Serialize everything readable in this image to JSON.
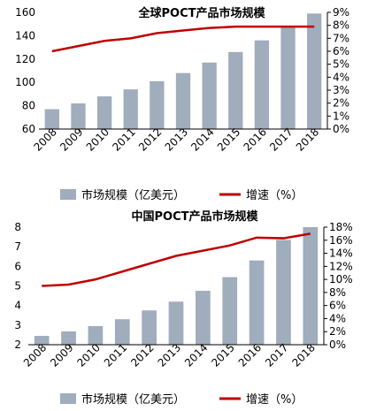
{
  "chart_data": [
    {
      "type": "bar",
      "title": "全球POCT产品市场规模",
      "categories": [
        "2008",
        "2009",
        "2010",
        "2011",
        "2012",
        "2013",
        "2014",
        "2015",
        "2016",
        "2017",
        "2018"
      ],
      "series": [
        {
          "name": "市场规模（亿美元）",
          "type": "bar",
          "axis": "left",
          "values": [
            77,
            82,
            88,
            94,
            101,
            108,
            117,
            126,
            136,
            148,
            159
          ]
        },
        {
          "name": "增速（%）",
          "type": "line",
          "axis": "right",
          "values": [
            6.0,
            6.4,
            6.8,
            7.0,
            7.4,
            7.6,
            7.8,
            7.9,
            7.9,
            7.9,
            7.9
          ]
        }
      ],
      "ylim_left": [
        60,
        160
      ],
      "yticks_left": [
        "60",
        "80",
        "100",
        "120",
        "140",
        "160"
      ],
      "ylim_right": [
        0,
        9
      ],
      "yticks_right": [
        "0%",
        "1%",
        "2%",
        "3%",
        "4%",
        "5%",
        "6%",
        "7%",
        "8%",
        "9%"
      ],
      "legend": "bottom",
      "colors": {
        "bar": "#9fadbd",
        "line": "#c00000"
      }
    },
    {
      "type": "bar",
      "title": "中国POCT产品市场规模",
      "categories": [
        "2008",
        "2009",
        "2010",
        "2011",
        "2012",
        "2013",
        "2014",
        "2015",
        "2016",
        "2017",
        "2018"
      ],
      "series": [
        {
          "name": "市场规模（亿美元）",
          "type": "bar",
          "axis": "left",
          "values": [
            2.45,
            2.68,
            2.95,
            3.3,
            3.75,
            4.2,
            4.75,
            5.45,
            6.3,
            7.35,
            8.0
          ]
        },
        {
          "name": "增速（%）",
          "type": "line",
          "axis": "right",
          "values": [
            9.0,
            9.2,
            10.0,
            11.2,
            12.4,
            13.6,
            14.4,
            15.2,
            16.4,
            16.3,
            17.0
          ]
        }
      ],
      "ylim_left": [
        2,
        8
      ],
      "yticks_left": [
        "2",
        "3",
        "4",
        "5",
        "6",
        "7",
        "8"
      ],
      "ylim_right": [
        0,
        18
      ],
      "yticks_right": [
        "0%",
        "2%",
        "4%",
        "6%",
        "8%",
        "10%",
        "12%",
        "14%",
        "16%",
        "18%"
      ],
      "legend": "bottom",
      "colors": {
        "bar": "#9fadbd",
        "line": "#c00000"
      }
    }
  ]
}
